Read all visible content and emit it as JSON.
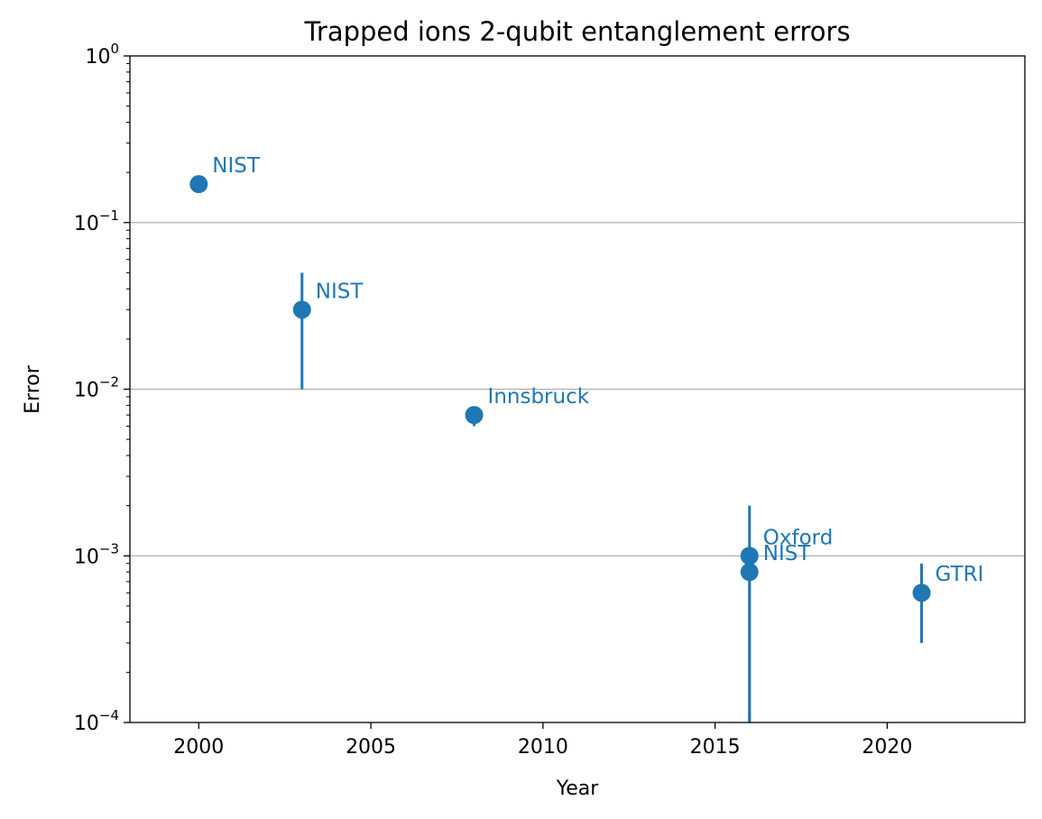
{
  "chart_data": {
    "type": "scatter",
    "title": "Trapped ions 2-qubit entanglement errors",
    "xlabel": "Year",
    "ylabel": "Error",
    "xlim": [
      1998,
      2024
    ],
    "ylim": [
      0.0001,
      1
    ],
    "yscale": "log",
    "xticks": [
      2000,
      2005,
      2010,
      2015,
      2020
    ],
    "yticks": [
      {
        "value": 0.0001,
        "base": "10",
        "exp": "−4"
      },
      {
        "value": 0.001,
        "base": "10",
        "exp": "−3"
      },
      {
        "value": 0.01,
        "base": "10",
        "exp": "−2"
      },
      {
        "value": 0.1,
        "base": "10",
        "exp": "−1"
      },
      {
        "value": 1,
        "base": "10",
        "exp": "0"
      }
    ],
    "grid": "y-major",
    "color": "#1f77b4",
    "points": [
      {
        "label": "NIST",
        "x": 2000,
        "y": 0.17,
        "err_low": 0.17,
        "err_high": 0.17
      },
      {
        "label": "NIST",
        "x": 2003,
        "y": 0.03,
        "err_low": 0.01,
        "err_high": 0.05
      },
      {
        "label": "Innsbruck",
        "x": 2008,
        "y": 0.007,
        "err_low": 0.006,
        "err_high": 0.0072
      },
      {
        "label": "Oxford",
        "x": 2016,
        "y": 0.001,
        "err_low": 0.0001,
        "err_high": 0.002
      },
      {
        "label": "NIST",
        "x": 2016,
        "y": 0.0008,
        "err_low": 0.0001,
        "err_high": 0.001
      },
      {
        "label": "GTRI",
        "x": 2021,
        "y": 0.0006,
        "err_low": 0.0003,
        "err_high": 0.0009
      }
    ]
  }
}
